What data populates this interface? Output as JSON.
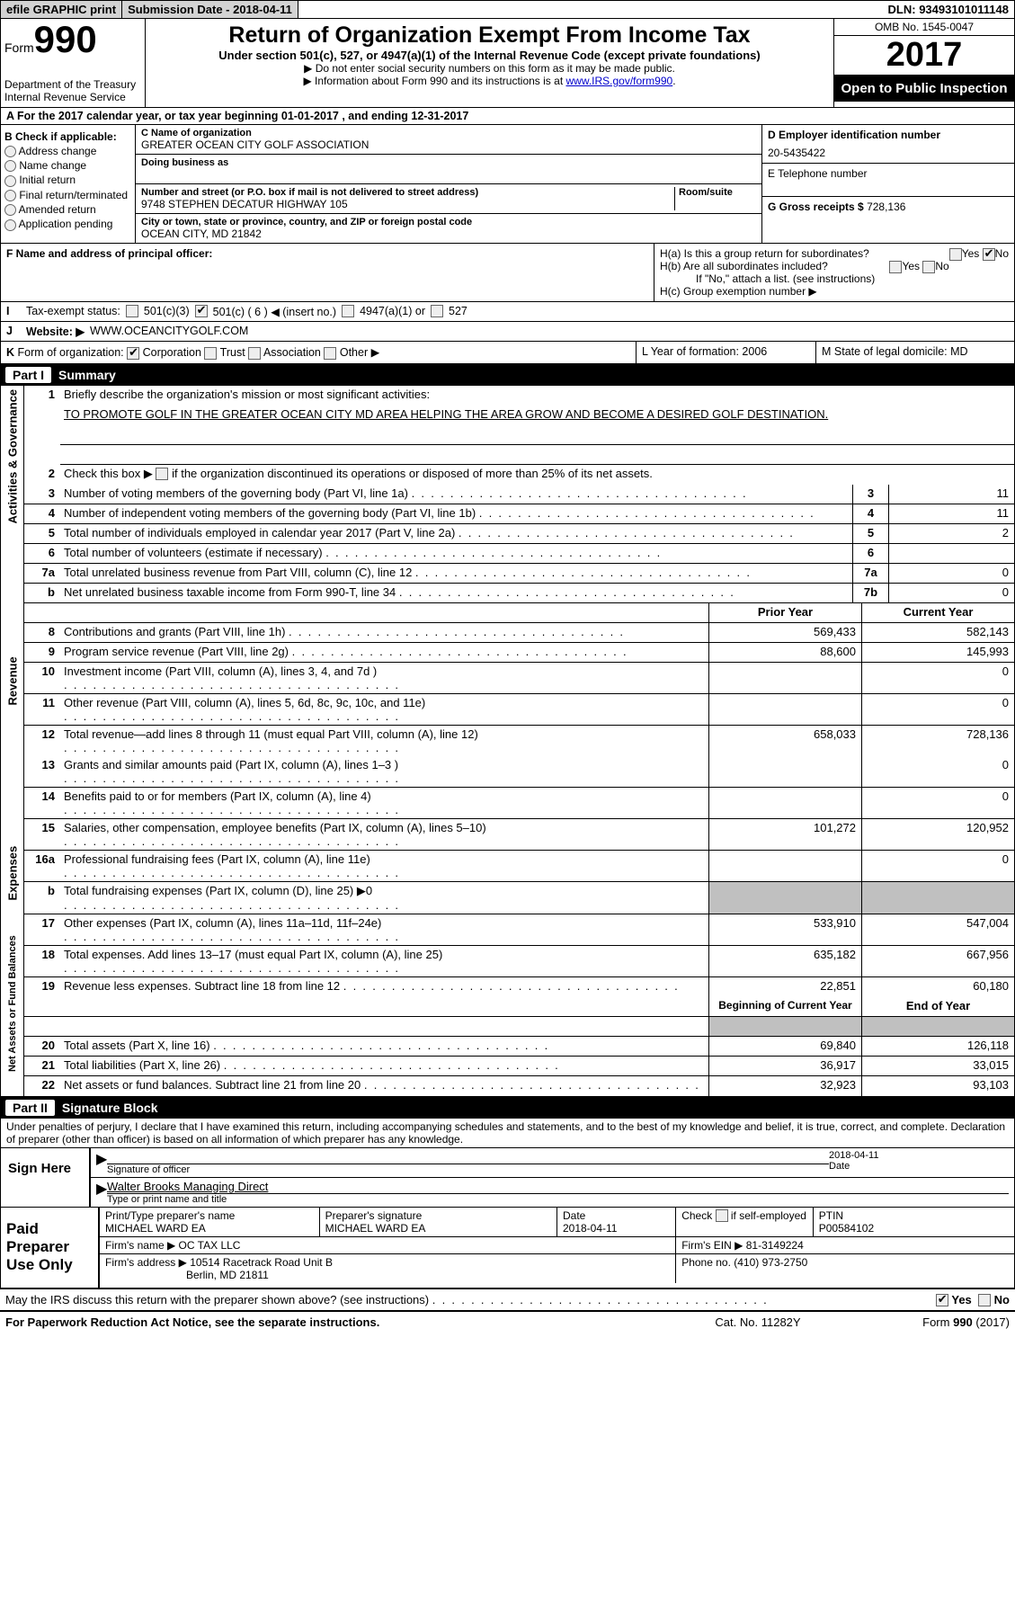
{
  "topbar": {
    "btn1": "efile GRAPHIC print",
    "btn2": "Submission Date - 2018-04-11",
    "dln": "DLN: 93493101011148"
  },
  "header": {
    "form_word": "Form",
    "form_num": "990",
    "dept": "Department of the Treasury\nInternal Revenue Service",
    "title": "Return of Organization Exempt From Income Tax",
    "subtitle": "Under section 501(c), 527, or 4947(a)(1) of the Internal Revenue Code (except private foundations)",
    "note1": "▶ Do not enter social security numbers on this form as it may be made public.",
    "note2a": "▶ Information about Form 990 and its instructions is at ",
    "note2_link": "www.IRS.gov/form990",
    "omb": "OMB No. 1545-0047",
    "year": "2017",
    "open": "Open to Public Inspection"
  },
  "rowA": "A  For the 2017 calendar year, or tax year beginning 01-01-2017   , and ending 12-31-2017",
  "colB": {
    "title": "B Check if applicable:",
    "items": [
      "Address change",
      "Name change",
      "Initial return",
      "Final return/terminated",
      "Amended return",
      "Application pending"
    ]
  },
  "colC": {
    "name_lbl": "C Name of organization",
    "name": "GREATER OCEAN CITY GOLF ASSOCIATION",
    "dba_lbl": "Doing business as",
    "dba": "",
    "street_lbl": "Number and street (or P.O. box if mail is not delivered to street address)",
    "street": "9748 STEPHEN DECATUR HIGHWAY 105",
    "room_lbl": "Room/suite",
    "city_lbl": "City or town, state or province, country, and ZIP or foreign postal code",
    "city": "OCEAN CITY, MD  21842"
  },
  "colD": {
    "ein_lbl": "D Employer identification number",
    "ein": "20-5435422",
    "phone_lbl": "E Telephone number",
    "phone": "",
    "gross_lbl": "G Gross receipts $",
    "gross": "728,136"
  },
  "secF": {
    "f_lbl": "F Name and address of principal officer:",
    "ha": "H(a)  Is this a group return for subordinates?",
    "hb": "H(b)  Are all subordinates included?",
    "hb_note": "If \"No,\" attach a list. (see instructions)",
    "hc": "H(c)  Group exemption number ▶"
  },
  "lineI": {
    "label": "Tax-exempt status:",
    "opts": [
      "501(c)(3)",
      "501(c) ( 6 ) ◀ (insert no.)",
      "4947(a)(1) or",
      "527"
    ]
  },
  "lineJ": {
    "label": "Website: ▶",
    "value": "WWW.OCEANCITYGOLF.COM"
  },
  "secK": {
    "k": "Form of organization:",
    "opts": [
      "Corporation",
      "Trust",
      "Association",
      "Other ▶"
    ],
    "l": "L Year of formation: 2006",
    "m": "M State of legal domicile: MD"
  },
  "part1": {
    "title": "Summary",
    "s1_lbl": "Briefly describe the organization's mission or most significant activities:",
    "s1_val": "TO PROMOTE GOLF IN THE GREATER OCEAN CITY MD AREA HELPING THE AREA GROW AND BECOME A DESIRED GOLF DESTINATION.",
    "s2": "Check this box ▶       if the organization discontinued its operations or disposed of more than 25% of its net assets.",
    "rows_kv": [
      {
        "n": "3",
        "d": "Number of voting members of the governing body (Part VI, line 1a)",
        "k": "3",
        "v": "11"
      },
      {
        "n": "4",
        "d": "Number of independent voting members of the governing body (Part VI, line 1b)",
        "k": "4",
        "v": "11"
      },
      {
        "n": "5",
        "d": "Total number of individuals employed in calendar year 2017 (Part V, line 2a)",
        "k": "5",
        "v": "2"
      },
      {
        "n": "6",
        "d": "Total number of volunteers (estimate if necessary)",
        "k": "6",
        "v": ""
      },
      {
        "n": "7a",
        "d": "Total unrelated business revenue from Part VIII, column (C), line 12",
        "k": "7a",
        "v": "0"
      },
      {
        "n": "b",
        "d": "Net unrelated business taxable income from Form 990-T, line 34",
        "k": "7b",
        "v": "0"
      }
    ],
    "th_prior": "Prior Year",
    "th_curr": "Current Year",
    "rev": [
      {
        "n": "8",
        "d": "Contributions and grants (Part VIII, line 1h)",
        "p": "569,433",
        "c": "582,143"
      },
      {
        "n": "9",
        "d": "Program service revenue (Part VIII, line 2g)",
        "p": "88,600",
        "c": "145,993"
      },
      {
        "n": "10",
        "d": "Investment income (Part VIII, column (A), lines 3, 4, and 7d )",
        "p": "",
        "c": "0"
      },
      {
        "n": "11",
        "d": "Other revenue (Part VIII, column (A), lines 5, 6d, 8c, 9c, 10c, and 11e)",
        "p": "",
        "c": "0"
      },
      {
        "n": "12",
        "d": "Total revenue—add lines 8 through 11 (must equal Part VIII, column (A), line 12)",
        "p": "658,033",
        "c": "728,136"
      }
    ],
    "exp": [
      {
        "n": "13",
        "d": "Grants and similar amounts paid (Part IX, column (A), lines 1–3 )",
        "p": "",
        "c": "0"
      },
      {
        "n": "14",
        "d": "Benefits paid to or for members (Part IX, column (A), line 4)",
        "p": "",
        "c": "0"
      },
      {
        "n": "15",
        "d": "Salaries, other compensation, employee benefits (Part IX, column (A), lines 5–10)",
        "p": "101,272",
        "c": "120,952"
      },
      {
        "n": "16a",
        "d": "Professional fundraising fees (Part IX, column (A), line 11e)",
        "p": "",
        "c": "0"
      },
      {
        "n": "b",
        "d": "Total fundraising expenses (Part IX, column (D), line 25) ▶0",
        "p": "grey",
        "c": "grey"
      },
      {
        "n": "17",
        "d": "Other expenses (Part IX, column (A), lines 11a–11d, 11f–24e)",
        "p": "533,910",
        "c": "547,004"
      },
      {
        "n": "18",
        "d": "Total expenses. Add lines 13–17 (must equal Part IX, column (A), line 25)",
        "p": "635,182",
        "c": "667,956"
      },
      {
        "n": "19",
        "d": "Revenue less expenses. Subtract line 18 from line 12",
        "p": "22,851",
        "c": "60,180"
      }
    ],
    "th_beg": "Beginning of Current Year",
    "th_end": "End of Year",
    "net": [
      {
        "n": "20",
        "d": "Total assets (Part X, line 16)",
        "p": "69,840",
        "c": "126,118"
      },
      {
        "n": "21",
        "d": "Total liabilities (Part X, line 26)",
        "p": "36,917",
        "c": "33,015"
      },
      {
        "n": "22",
        "d": "Net assets or fund balances. Subtract line 21 from line 20",
        "p": "32,923",
        "c": "93,103"
      }
    ],
    "side_gov": "Activities & Governance",
    "side_rev": "Revenue",
    "side_exp": "Expenses",
    "side_net": "Net Assets or Fund Balances"
  },
  "part2": {
    "title": "Signature Block",
    "decl": "Under penalties of perjury, I declare that I have examined this return, including accompanying schedules and statements, and to the best of my knowledge and belief, it is true, correct, and complete. Declaration of preparer (other than officer) is based on all information of which preparer has any knowledge.",
    "sign_here": "Sign Here",
    "sig_officer": "Signature of officer",
    "sig_date": "2018-04-11",
    "date_lbl": "Date",
    "sig_name": "Walter Brooks Managing Direct",
    "sig_name_lbl": "Type or print name and title",
    "paid": "Paid Preparer Use Only",
    "prep_name_lbl": "Print/Type preparer's name",
    "prep_name": "MICHAEL WARD EA",
    "prep_sig_lbl": "Preparer's signature",
    "prep_sig": "MICHAEL WARD EA",
    "prep_date_lbl": "Date",
    "prep_date": "2018-04-11",
    "self_emp": "Check       if self-employed",
    "ptin_lbl": "PTIN",
    "ptin": "P00584102",
    "firm_name_lbl": "Firm's name    ▶",
    "firm_name": "OC TAX LLC",
    "firm_ein_lbl": "Firm's EIN ▶",
    "firm_ein": "81-3149224",
    "firm_addr_lbl": "Firm's address ▶",
    "firm_addr": "10514 Racetrack Road Unit B",
    "firm_addr2": "Berlin, MD  21811",
    "firm_phone_lbl": "Phone no.",
    "firm_phone": "(410) 973-2750"
  },
  "footer": {
    "discuss": "May the IRS discuss this return with the preparer shown above? (see instructions)",
    "paperwork": "For Paperwork Reduction Act Notice, see the separate instructions.",
    "cat": "Cat. No. 11282Y",
    "form": "Form 990 (2017)"
  }
}
